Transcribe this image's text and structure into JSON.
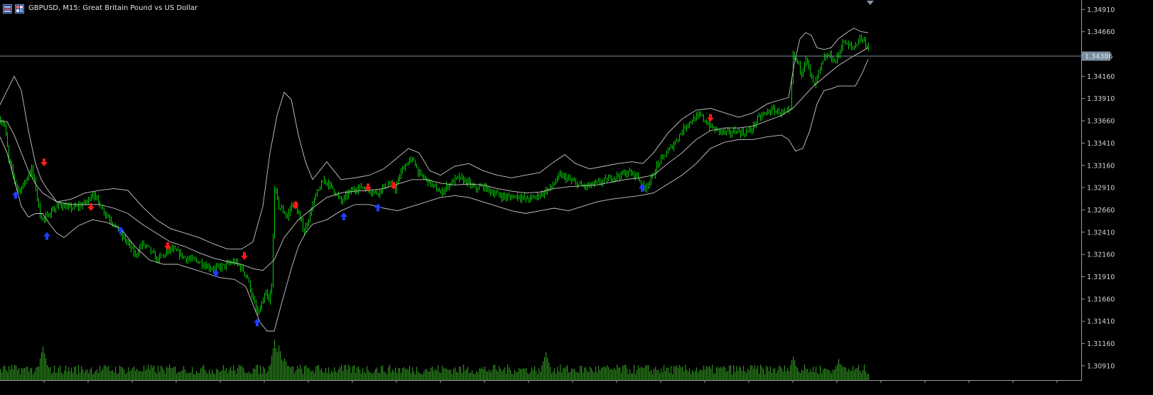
{
  "window": {
    "title": "GBPUSD, M15:  Great Britain Pound vs US Dollar",
    "icons": [
      "trade-panel-icon",
      "chart-properties-icon"
    ]
  },
  "colors": {
    "background": "#000000",
    "bull": "#00d000",
    "bear": "#00d000",
    "volume": "#2d8f1e",
    "bands": "#c8c8c8",
    "bid_line": "#7a8ca0",
    "buy_arrow": "#1f3dff",
    "sell_arrow": "#ff1a1a",
    "axis_text": "#d0d0d0",
    "axis_line": "#9a9a9a",
    "price_label_bg": "#7a8ca0"
  },
  "price_axis": {
    "ticks": [
      "1.34910",
      "1.34660",
      "1.34160",
      "1.33910",
      "1.33660",
      "1.33410",
      "1.33160",
      "1.32910",
      "1.32660",
      "1.32410",
      "1.32160",
      "1.31910",
      "1.31660",
      "1.31410",
      "1.31160",
      "1.30910"
    ],
    "current_price": "1.34386"
  },
  "chart_data": {
    "type": "candlestick",
    "symbol": "GBPUSD",
    "timeframe": "M15",
    "ylim": [
      1.3075,
      1.35
    ],
    "bid": 1.34386,
    "path": [
      [
        0,
        1.3367
      ],
      [
        6,
        1.3362
      ],
      [
        12,
        1.3322
      ],
      [
        18,
        1.3305
      ],
      [
        24,
        1.329
      ],
      [
        28,
        1.3288
      ],
      [
        36,
        1.33
      ],
      [
        44,
        1.3312
      ],
      [
        50,
        1.329
      ],
      [
        56,
        1.326
      ],
      [
        62,
        1.3255
      ],
      [
        72,
        1.3265
      ],
      [
        84,
        1.3272
      ],
      [
        96,
        1.3268
      ],
      [
        110,
        1.327
      ],
      [
        122,
        1.3275
      ],
      [
        130,
        1.3285
      ],
      [
        140,
        1.3272
      ],
      [
        150,
        1.326
      ],
      [
        160,
        1.325
      ],
      [
        170,
        1.3238
      ],
      [
        180,
        1.3228
      ],
      [
        190,
        1.3215
      ],
      [
        200,
        1.3228
      ],
      [
        210,
        1.3222
      ],
      [
        220,
        1.321
      ],
      [
        230,
        1.3215
      ],
      [
        240,
        1.3222
      ],
      [
        250,
        1.3218
      ],
      [
        260,
        1.3212
      ],
      [
        270,
        1.321
      ],
      [
        280,
        1.3208
      ],
      [
        290,
        1.3203
      ],
      [
        300,
        1.32
      ],
      [
        310,
        1.3202
      ],
      [
        320,
        1.3205
      ],
      [
        330,
        1.3208
      ],
      [
        340,
        1.32
      ],
      [
        348,
        1.319
      ],
      [
        356,
        1.3165
      ],
      [
        362,
        1.3148
      ],
      [
        368,
        1.316
      ],
      [
        374,
        1.3172
      ],
      [
        378,
        1.3162
      ],
      [
        382,
        1.318
      ],
      [
        386,
        1.3292
      ],
      [
        392,
        1.327
      ],
      [
        398,
        1.3265
      ],
      [
        404,
        1.3258
      ],
      [
        410,
        1.3272
      ],
      [
        416,
        1.327
      ],
      [
        422,
        1.3255
      ],
      [
        428,
        1.3242
      ],
      [
        436,
        1.3262
      ],
      [
        444,
        1.3282
      ],
      [
        456,
        1.33
      ],
      [
        468,
        1.329
      ],
      [
        480,
        1.3275
      ],
      [
        490,
        1.3285
      ],
      [
        500,
        1.329
      ],
      [
        510,
        1.3292
      ],
      [
        520,
        1.3288
      ],
      [
        530,
        1.3285
      ],
      [
        540,
        1.3292
      ],
      [
        548,
        1.3295
      ],
      [
        556,
        1.329
      ],
      [
        566,
        1.3312
      ],
      [
        574,
        1.332
      ],
      [
        582,
        1.3322
      ],
      [
        590,
        1.3305
      ],
      [
        600,
        1.33
      ],
      [
        610,
        1.3292
      ],
      [
        620,
        1.3285
      ],
      [
        632,
        1.3295
      ],
      [
        644,
        1.3302
      ],
      [
        656,
        1.3298
      ],
      [
        668,
        1.329
      ],
      [
        680,
        1.3292
      ],
      [
        692,
        1.3286
      ],
      [
        704,
        1.3282
      ],
      [
        716,
        1.328
      ],
      [
        728,
        1.3282
      ],
      [
        740,
        1.3278
      ],
      [
        752,
        1.328
      ],
      [
        764,
        1.3285
      ],
      [
        776,
        1.3292
      ],
      [
        788,
        1.3305
      ],
      [
        800,
        1.33
      ],
      [
        812,
        1.3295
      ],
      [
        824,
        1.3292
      ],
      [
        836,
        1.3295
      ],
      [
        848,
        1.3298
      ],
      [
        860,
        1.3302
      ],
      [
        872,
        1.3305
      ],
      [
        884,
        1.3308
      ],
      [
        896,
        1.3305
      ],
      [
        906,
        1.329
      ],
      [
        916,
        1.33
      ],
      [
        926,
        1.3318
      ],
      [
        936,
        1.3328
      ],
      [
        946,
        1.3338
      ],
      [
        956,
        1.335
      ],
      [
        966,
        1.3362
      ],
      [
        976,
        1.3368
      ],
      [
        986,
        1.3372
      ],
      [
        996,
        1.3362
      ],
      [
        1006,
        1.3356
      ],
      [
        1016,
        1.3354
      ],
      [
        1026,
        1.3352
      ],
      [
        1036,
        1.3355
      ],
      [
        1046,
        1.3352
      ],
      [
        1056,
        1.3355
      ],
      [
        1066,
        1.3368
      ],
      [
        1076,
        1.3374
      ],
      [
        1086,
        1.3378
      ],
      [
        1096,
        1.3376
      ],
      [
        1106,
        1.3374
      ],
      [
        1112,
        1.3378
      ],
      [
        1116,
        1.344
      ],
      [
        1122,
        1.3432
      ],
      [
        1128,
        1.342
      ],
      [
        1134,
        1.3438
      ],
      [
        1140,
        1.3418
      ],
      [
        1146,
        1.3405
      ],
      [
        1152,
        1.342
      ],
      [
        1160,
        1.3436
      ],
      [
        1168,
        1.344
      ],
      [
        1174,
        1.3432
      ],
      [
        1180,
        1.344
      ],
      [
        1186,
        1.3455
      ],
      [
        1194,
        1.345
      ],
      [
        1202,
        1.3448
      ],
      [
        1210,
        1.346
      ],
      [
        1216,
        1.3455
      ],
      [
        1222,
        1.3448
      ]
    ],
    "signals": [
      {
        "type": "buy",
        "bar_x": 22,
        "price": 1.3284
      },
      {
        "type": "sell",
        "bar_x": 62,
        "price": 1.3318
      },
      {
        "type": "buy",
        "bar_x": 66,
        "price": 1.3238
      },
      {
        "type": "sell",
        "bar_x": 128,
        "price": 1.3268
      },
      {
        "type": "buy",
        "bar_x": 170,
        "price": 1.3244
      },
      {
        "type": "sell",
        "bar_x": 236,
        "price": 1.3224
      },
      {
        "type": "buy",
        "bar_x": 304,
        "price": 1.3196
      },
      {
        "type": "sell",
        "bar_x": 344,
        "price": 1.3213
      },
      {
        "type": "buy",
        "bar_x": 362,
        "price": 1.3141
      },
      {
        "type": "sell",
        "bar_x": 416,
        "price": 1.327
      },
      {
        "type": "buy",
        "bar_x": 484,
        "price": 1.326
      },
      {
        "type": "sell",
        "bar_x": 518,
        "price": 1.329
      },
      {
        "type": "buy",
        "bar_x": 532,
        "price": 1.327
      },
      {
        "type": "sell",
        "bar_x": 554,
        "price": 1.3292
      },
      {
        "type": "buy",
        "bar_x": 904,
        "price": 1.3292
      },
      {
        "type": "sell",
        "bar_x": 1000,
        "price": 1.3368
      }
    ],
    "volume_spikes": [
      [
        60,
        45
      ],
      [
        386,
        55
      ],
      [
        392,
        48
      ],
      [
        400,
        30
      ],
      [
        768,
        38
      ],
      [
        1116,
        32
      ],
      [
        1180,
        28
      ]
    ],
    "upper_band": [
      [
        0,
        1.3384
      ],
      [
        10,
        1.34
      ],
      [
        20,
        1.3416
      ],
      [
        30,
        1.34
      ],
      [
        40,
        1.3355
      ],
      [
        50,
        1.3318
      ],
      [
        58,
        1.33
      ],
      [
        66,
        1.329
      ],
      [
        80,
        1.3275
      ],
      [
        100,
        1.3278
      ],
      [
        120,
        1.3285
      ],
      [
        140,
        1.3288
      ],
      [
        160,
        1.329
      ],
      [
        180,
        1.3288
      ],
      [
        200,
        1.327
      ],
      [
        220,
        1.3255
      ],
      [
        240,
        1.3245
      ],
      [
        260,
        1.324
      ],
      [
        280,
        1.3235
      ],
      [
        300,
        1.3228
      ],
      [
        320,
        1.3222
      ],
      [
        340,
        1.3222
      ],
      [
        356,
        1.323
      ],
      [
        370,
        1.327
      ],
      [
        380,
        1.333
      ],
      [
        390,
        1.3372
      ],
      [
        400,
        1.3398
      ],
      [
        410,
        1.339
      ],
      [
        420,
        1.335
      ],
      [
        430,
        1.332
      ],
      [
        440,
        1.33
      ],
      [
        450,
        1.331
      ],
      [
        460,
        1.332
      ],
      [
        470,
        1.331
      ],
      [
        480,
        1.33
      ],
      [
        500,
        1.3302
      ],
      [
        520,
        1.3305
      ],
      [
        540,
        1.3312
      ],
      [
        560,
        1.3325
      ],
      [
        575,
        1.3335
      ],
      [
        590,
        1.333
      ],
      [
        605,
        1.331
      ],
      [
        620,
        1.3305
      ],
      [
        640,
        1.3315
      ],
      [
        660,
        1.3318
      ],
      [
        680,
        1.331
      ],
      [
        700,
        1.3305
      ],
      [
        720,
        1.3302
      ],
      [
        740,
        1.3305
      ],
      [
        760,
        1.3308
      ],
      [
        780,
        1.332
      ],
      [
        795,
        1.3328
      ],
      [
        810,
        1.3318
      ],
      [
        830,
        1.3312
      ],
      [
        850,
        1.3315
      ],
      [
        870,
        1.3318
      ],
      [
        890,
        1.332
      ],
      [
        905,
        1.3318
      ],
      [
        920,
        1.333
      ],
      [
        940,
        1.3352
      ],
      [
        960,
        1.3368
      ],
      [
        980,
        1.3378
      ],
      [
        1000,
        1.338
      ],
      [
        1020,
        1.3375
      ],
      [
        1040,
        1.337
      ],
      [
        1060,
        1.3375
      ],
      [
        1080,
        1.3385
      ],
      [
        1100,
        1.339
      ],
      [
        1110,
        1.3392
      ],
      [
        1118,
        1.343
      ],
      [
        1126,
        1.3458
      ],
      [
        1134,
        1.3465
      ],
      [
        1142,
        1.3462
      ],
      [
        1150,
        1.3448
      ],
      [
        1160,
        1.3446
      ],
      [
        1170,
        1.3448
      ],
      [
        1180,
        1.3458
      ],
      [
        1192,
        1.3465
      ],
      [
        1202,
        1.347
      ],
      [
        1212,
        1.3466
      ],
      [
        1222,
        1.3465
      ]
    ],
    "middle_band": [
      [
        0,
        1.3366
      ],
      [
        10,
        1.3365
      ],
      [
        20,
        1.335
      ],
      [
        30,
        1.333
      ],
      [
        40,
        1.331
      ],
      [
        50,
        1.3295
      ],
      [
        60,
        1.3285
      ],
      [
        80,
        1.3275
      ],
      [
        100,
        1.3272
      ],
      [
        120,
        1.3272
      ],
      [
        140,
        1.3272
      ],
      [
        160,
        1.3268
      ],
      [
        180,
        1.3262
      ],
      [
        200,
        1.325
      ],
      [
        220,
        1.324
      ],
      [
        240,
        1.323
      ],
      [
        260,
        1.3225
      ],
      [
        280,
        1.3218
      ],
      [
        300,
        1.3212
      ],
      [
        320,
        1.3208
      ],
      [
        340,
        1.3205
      ],
      [
        356,
        1.32
      ],
      [
        370,
        1.3198
      ],
      [
        386,
        1.321
      ],
      [
        400,
        1.3235
      ],
      [
        420,
        1.3255
      ],
      [
        440,
        1.3268
      ],
      [
        460,
        1.328
      ],
      [
        480,
        1.3285
      ],
      [
        500,
        1.3287
      ],
      [
        520,
        1.3288
      ],
      [
        540,
        1.329
      ],
      [
        560,
        1.3295
      ],
      [
        580,
        1.33
      ],
      [
        600,
        1.33
      ],
      [
        620,
        1.3296
      ],
      [
        640,
        1.3294
      ],
      [
        660,
        1.3295
      ],
      [
        680,
        1.3294
      ],
      [
        700,
        1.329
      ],
      [
        720,
        1.3287
      ],
      [
        740,
        1.3285
      ],
      [
        760,
        1.3286
      ],
      [
        780,
        1.329
      ],
      [
        800,
        1.3292
      ],
      [
        820,
        1.3293
      ],
      [
        840,
        1.3294
      ],
      [
        860,
        1.3297
      ],
      [
        880,
        1.33
      ],
      [
        900,
        1.3302
      ],
      [
        920,
        1.3305
      ],
      [
        940,
        1.3318
      ],
      [
        960,
        1.333
      ],
      [
        980,
        1.3345
      ],
      [
        1000,
        1.3355
      ],
      [
        1020,
        1.3358
      ],
      [
        1040,
        1.3358
      ],
      [
        1060,
        1.336
      ],
      [
        1080,
        1.3366
      ],
      [
        1100,
        1.3372
      ],
      [
        1116,
        1.338
      ],
      [
        1130,
        1.3392
      ],
      [
        1145,
        1.3405
      ],
      [
        1160,
        1.3415
      ],
      [
        1180,
        1.3428
      ],
      [
        1200,
        1.3438
      ],
      [
        1222,
        1.3448
      ]
    ],
    "lower_band": [
      [
        0,
        1.3348
      ],
      [
        10,
        1.333
      ],
      [
        20,
        1.33
      ],
      [
        30,
        1.327
      ],
      [
        40,
        1.3258
      ],
      [
        50,
        1.3262
      ],
      [
        60,
        1.3262
      ],
      [
        70,
        1.325
      ],
      [
        80,
        1.324
      ],
      [
        90,
        1.3235
      ],
      [
        110,
        1.3248
      ],
      [
        130,
        1.3255
      ],
      [
        150,
        1.3252
      ],
      [
        170,
        1.3245
      ],
      [
        190,
        1.3225
      ],
      [
        210,
        1.321
      ],
      [
        230,
        1.3205
      ],
      [
        250,
        1.3205
      ],
      [
        270,
        1.32
      ],
      [
        290,
        1.3195
      ],
      [
        310,
        1.319
      ],
      [
        330,
        1.3188
      ],
      [
        346,
        1.318
      ],
      [
        356,
        1.316
      ],
      [
        366,
        1.314
      ],
      [
        376,
        1.313
      ],
      [
        386,
        1.313
      ],
      [
        396,
        1.316
      ],
      [
        410,
        1.32
      ],
      [
        420,
        1.3225
      ],
      [
        430,
        1.324
      ],
      [
        440,
        1.325
      ],
      [
        460,
        1.3255
      ],
      [
        480,
        1.3265
      ],
      [
        500,
        1.3272
      ],
      [
        520,
        1.3272
      ],
      [
        540,
        1.3268
      ],
      [
        560,
        1.3265
      ],
      [
        580,
        1.327
      ],
      [
        600,
        1.3275
      ],
      [
        620,
        1.328
      ],
      [
        640,
        1.3282
      ],
      [
        660,
        1.328
      ],
      [
        680,
        1.3275
      ],
      [
        700,
        1.327
      ],
      [
        720,
        1.3265
      ],
      [
        740,
        1.3262
      ],
      [
        760,
        1.3265
      ],
      [
        780,
        1.3268
      ],
      [
        800,
        1.3265
      ],
      [
        820,
        1.327
      ],
      [
        840,
        1.3275
      ],
      [
        860,
        1.3278
      ],
      [
        880,
        1.328
      ],
      [
        900,
        1.3282
      ],
      [
        920,
        1.3285
      ],
      [
        940,
        1.3295
      ],
      [
        960,
        1.3305
      ],
      [
        980,
        1.3318
      ],
      [
        1000,
        1.3335
      ],
      [
        1020,
        1.3342
      ],
      [
        1040,
        1.3345
      ],
      [
        1060,
        1.3345
      ],
      [
        1080,
        1.3348
      ],
      [
        1100,
        1.335
      ],
      [
        1110,
        1.3345
      ],
      [
        1120,
        1.3332
      ],
      [
        1130,
        1.3335
      ],
      [
        1140,
        1.3355
      ],
      [
        1150,
        1.3385
      ],
      [
        1160,
        1.34
      ],
      [
        1170,
        1.3402
      ],
      [
        1180,
        1.3405
      ],
      [
        1192,
        1.3405
      ],
      [
        1204,
        1.3405
      ],
      [
        1214,
        1.342
      ],
      [
        1222,
        1.3435
      ]
    ]
  }
}
